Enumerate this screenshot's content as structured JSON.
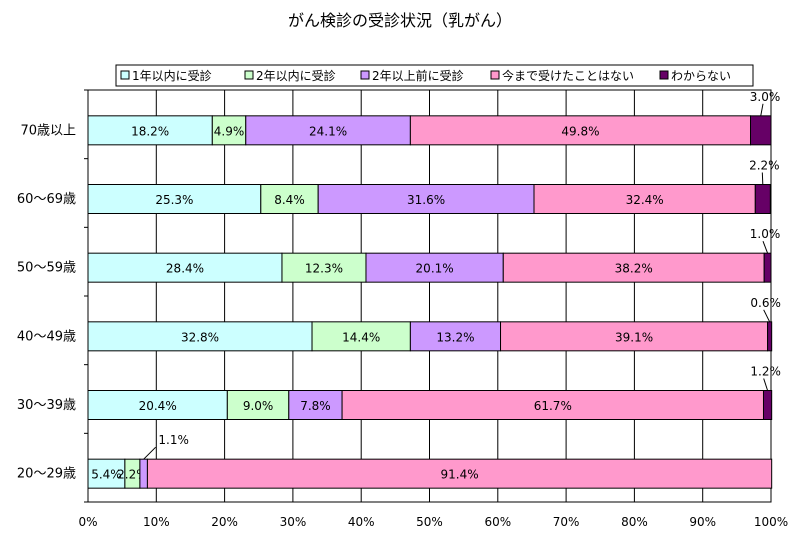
{
  "chart_data": {
    "type": "bar",
    "title": "がん検診の受診状況（乳がん）",
    "categories": [
      "70歳以上",
      "60～69歳",
      "50～59歳",
      "40～49歳",
      "30～39歳",
      "20～29歳"
    ],
    "series": [
      {
        "name": "1年以内に受診",
        "color": "#ccffff",
        "values": [
          18.2,
          25.3,
          28.4,
          32.8,
          20.4,
          5.4
        ]
      },
      {
        "name": "2年以内に受診",
        "color": "#ccffcc",
        "values": [
          4.9,
          8.4,
          12.3,
          14.4,
          9.0,
          2.2
        ]
      },
      {
        "name": "2年以上前に受診",
        "color": "#cc99ff",
        "values": [
          24.1,
          31.6,
          20.1,
          13.2,
          7.8,
          1.1
        ]
      },
      {
        "name": "今まで受けたことはない",
        "color": "#ff99cc",
        "values": [
          49.8,
          32.4,
          38.2,
          39.1,
          61.7,
          91.4
        ]
      },
      {
        "name": "わからない",
        "color": "#660066",
        "values": [
          3.0,
          2.2,
          1.0,
          0.6,
          1.2,
          0.0
        ]
      }
    ],
    "labels": [
      [
        "18.2%",
        "4.9%",
        "24.1%",
        "49.8%",
        "3.0%"
      ],
      [
        "25.3%",
        "8.4%",
        "31.6%",
        "32.4%",
        "2.2%"
      ],
      [
        "28.4%",
        "12.3%",
        "20.1%",
        "38.2%",
        "1.0%"
      ],
      [
        "32.8%",
        "14.4%",
        "13.2%",
        "39.1%",
        "0.6%"
      ],
      [
        "20.4%",
        "9.0%",
        "7.8%",
        "61.7%",
        "1.2%"
      ],
      [
        "5.4%",
        "2.2%",
        "1.1%",
        "91.4%",
        ""
      ]
    ],
    "xlim": [
      0,
      100
    ],
    "xticks": [
      "0%",
      "10%",
      "20%",
      "30%",
      "40%",
      "50%",
      "60%",
      "70%",
      "80%",
      "90%",
      "100%"
    ],
    "stacked": true,
    "orientation": "horizontal",
    "grid": true,
    "legend_position": "top"
  }
}
